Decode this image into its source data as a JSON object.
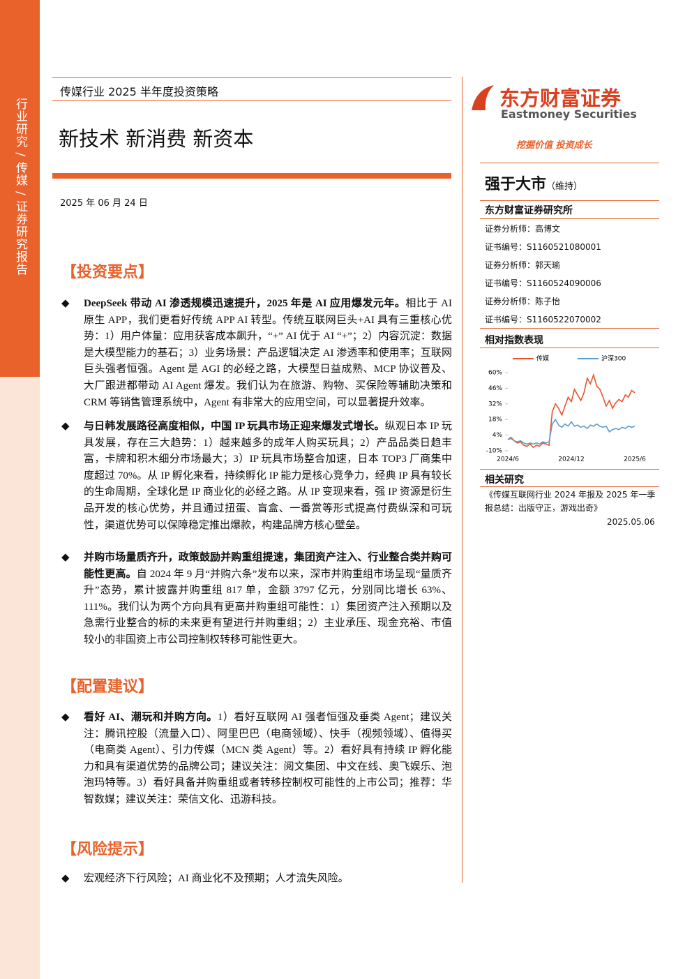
{
  "sidebar": "行业研究 / 传媒 / 证券研究报告",
  "header": {
    "subtitle": "传媒行业 2025 半年度投资策略",
    "title": "新技术 新消费 新资本",
    "date": "2025 年 06 月 24 日"
  },
  "sections": [
    {
      "heading": "【投资要点】",
      "items": [
        {
          "bold": "DeepSeek 带动 AI 渗透规模迅速提升，2025 年是 AI 应用爆发元年。",
          "text": "相比于 AI 原生 APP，我们更看好传统 APP AI 转型。传统互联网巨头+AI 具有三重核心优势：1）用户体量：应用获客成本飙升，“+” AI 优于 AI “+”；2）内容沉淀：数据是大模型能力的基石；3）业务场景：产品逻辑决定 AI 渗透率和使用率；互联网巨头强者恒强。Agent 是 AGI 的必经之路，大模型日益成熟、MCP 协议普及、大厂跟进都带动 AI Agent 爆发。我们认为在旅游、购物、买保险等辅助决策和 CRM 等销售管理系统中，Agent 有非常大的应用空间，可以显著提升效率。"
        },
        {
          "bold": "与日韩发展路径高度相似，中国 IP 玩具市场正迎来爆发式增长。",
          "text": "纵观日本 IP 玩具发展，存在三大趋势：1）越来越多的成年人购买玩具；2）产品品类日趋丰富，卡牌和积木细分市场最大；3）IP 玩具市场整合加速，日本 TOP3 厂商集中度超过 70%。从 IP 孵化来看，持续孵化 IP 能力是核心竞争力，经典 IP 具有较长的生命周期，全球化是 IP 商业化的必经之路。从 IP 变现来看，强 IP 资源是衍生品开发的核心优势，并且通过扭蛋、盲盒、一番赏等形式提高付费纵深和可玩性，渠道优势可以保障稳定推出爆款，构建品牌方核心壁垒。"
        },
        {
          "bold": "并购市场量质齐升，政策鼓励并购重组提速，集团资产注入、行业整合类并购可能性更高。",
          "text": "自 2024 年 9 月“并购六条”发布以来，深市并购重组市场呈现“量质齐升”态势，累计披露并购重组 817 单，金额 3797 亿元，分别同比增长 63%、111%。我们认为两个方向具有更高并购重组可能性：1）集团资产注入预期以及急需行业整合的标的未来更有望进行并购重组；2）主业承压、现金充裕、市值较小的非国资上市公司控制权转移可能性更大。"
        }
      ]
    },
    {
      "heading": "【配置建议】",
      "items": [
        {
          "bold": "看好 AI、潮玩和并购方向。",
          "text": "1）看好互联网 AI 强者恒强及垂类 Agent；建议关注：腾讯控股（流量入口）、阿里巴巴（电商领域）、快手（视频领域）、值得买（电商类 Agent）、引力传媒（MCN 类 Agent）等。2）看好具有持续 IP 孵化能力和具有渠道优势的品牌公司；建议关注：阅文集团、中文在线、奥飞娱乐、泡泡玛特等。3）看好具备并购重组或者转移控制权可能性的上市公司；推荐：华智数媒；建议关注：荣信文化、迅游科技。"
        }
      ]
    },
    {
      "heading": "【风险提示】",
      "items": [
        {
          "text": "宏观经济下行风险；AI 商业化不及预期；人才流失风险。"
        }
      ]
    }
  ],
  "right": {
    "logo_cn": "东方财富证券",
    "logo_en": "Eastmoney Securities",
    "slogan": "挖掘价值 投资成长",
    "rating": "强于大市",
    "rating_note": "（维持）",
    "institute": "东方财富证券研究所",
    "analysts": [
      "证券分析师：高博文",
      "证书编号：S1160521080001",
      "证券分析师：郭天瑜",
      "证书编号：S1160524090006",
      "证券分析师：陈子怡",
      "证书编号：S1160522070002"
    ],
    "chart_heading": "相对指数表现",
    "related_heading": "相关研究",
    "related_title": "《传媒互联网行业 2024 年报及 2025 年一季报总结：出版守正，游戏出奇》",
    "related_date": "2025.05.06"
  },
  "chart_data": {
    "type": "line",
    "categories": [
      "2024/6",
      null,
      null,
      null,
      null,
      null,
      null,
      null,
      null,
      null,
      null,
      null,
      null,
      null,
      null,
      null,
      null,
      null,
      null,
      null,
      "2024/12",
      null,
      null,
      null,
      null,
      null,
      null,
      null,
      null,
      null,
      null,
      null,
      null,
      null,
      null,
      null,
      null,
      null,
      null,
      null,
      "2025/6"
    ],
    "series": [
      {
        "name": "传媒",
        "color": "#e8542a",
        "values": [
          0,
          2,
          -1,
          -3,
          -2,
          -5,
          -6,
          -4,
          -7,
          -5,
          -6,
          -3,
          -4,
          -5,
          25,
          32,
          28,
          22,
          30,
          38,
          34,
          45,
          40,
          35,
          42,
          55,
          50,
          58,
          48,
          45,
          38,
          30,
          35,
          28,
          33,
          36,
          34,
          40,
          38,
          44,
          42
        ]
      },
      {
        "name": "沪深300",
        "color": "#5b9bd5",
        "values": [
          0,
          1,
          -1,
          -2,
          -1,
          -3,
          -4,
          -3,
          -4,
          -3,
          -4,
          -2,
          -3,
          -2,
          14,
          18,
          13,
          11,
          14,
          12,
          16,
          12,
          13,
          11,
          12,
          10,
          13,
          12,
          14,
          12,
          11,
          12,
          7,
          9,
          10,
          9,
          11,
          10,
          12,
          11,
          12
        ]
      }
    ],
    "ylim": [
      -10,
      60
    ],
    "yticks": [
      {
        "value": 60,
        "label": "60%"
      },
      {
        "value": 46,
        "label": "46%"
      },
      {
        "value": 32,
        "label": "32%"
      },
      {
        "value": 18,
        "label": "18%"
      },
      {
        "value": 4,
        "label": "4%"
      },
      {
        "value": -10,
        "label": "-10%"
      }
    ]
  }
}
